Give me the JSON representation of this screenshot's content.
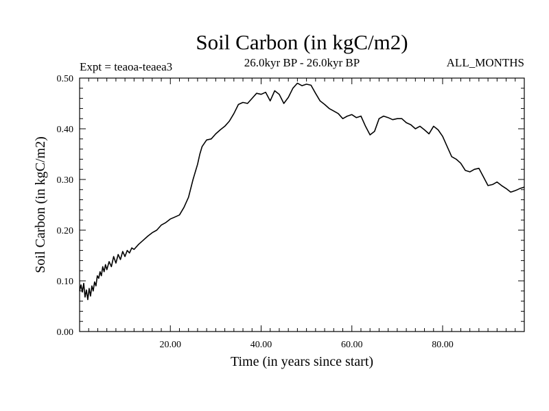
{
  "chart_data": {
    "type": "line",
    "title": "Soil Carbon (in kgC/m2)",
    "subtitle": "26.0kyr BP - 26.0kyr BP",
    "expt_label": "Expt = teaoa-teaea3",
    "months_label": "ALL_MONTHS",
    "xlabel": "Time (in years since start)",
    "ylabel": "Soil Carbon (in kgC/m2)",
    "xlim": [
      0,
      98
    ],
    "ylim": [
      0,
      0.5
    ],
    "x_ticks": [
      20,
      40,
      60,
      80
    ],
    "x_tick_labels": [
      "20.00",
      "40.00",
      "60.00",
      "80.00"
    ],
    "y_ticks": [
      0,
      0.1,
      0.2,
      0.3,
      0.4,
      0.5
    ],
    "y_tick_labels": [
      "0.00",
      "0.10",
      "0.20",
      "0.30",
      "0.40",
      "0.50"
    ],
    "grid": false,
    "series": [
      {
        "name": "soil_carbon",
        "color": "#000000",
        "x": [
          0,
          0.3,
          0.6,
          0.9,
          1.2,
          1.5,
          1.8,
          2.1,
          2.4,
          2.7,
          3.0,
          3.3,
          3.6,
          3.9,
          4.2,
          4.5,
          4.8,
          5.1,
          5.4,
          5.7,
          6.0,
          6.5,
          7.0,
          7.5,
          8.0,
          8.5,
          9.0,
          9.5,
          10.0,
          10.5,
          11.0,
          11.5,
          12.0,
          13.0,
          14.0,
          15.0,
          16.0,
          17.0,
          18.0,
          19.0,
          20.0,
          21.0,
          22.0,
          23.0,
          24.0,
          25.0,
          25.5,
          26.0,
          26.5,
          27.0,
          28.0,
          29.0,
          30.0,
          31.0,
          32.0,
          33.0,
          34.0,
          35.0,
          36.0,
          37.0,
          38.0,
          39.0,
          40.0,
          41.0,
          42.0,
          43.0,
          44.0,
          45.0,
          46.0,
          47.0,
          48.0,
          49.0,
          50.0,
          51.0,
          52.0,
          53.0,
          54.0,
          55.0,
          56.0,
          57.0,
          58.0,
          59.0,
          60.0,
          61.0,
          62.0,
          63.0,
          64.0,
          65.0,
          66.0,
          67.0,
          68.0,
          69.0,
          70.0,
          71.0,
          72.0,
          73.0,
          74.0,
          75.0,
          76.0,
          77.0,
          78.0,
          79.0,
          80.0,
          81.0,
          82.0,
          83.0,
          84.0,
          85.0,
          86.0,
          87.0,
          88.0,
          89.0,
          90.0,
          91.0,
          92.0,
          93.0,
          94.0,
          95.0,
          96.0,
          97.0,
          98.0
        ],
        "values": [
          0.08,
          0.092,
          0.078,
          0.095,
          0.068,
          0.082,
          0.063,
          0.085,
          0.07,
          0.09,
          0.08,
          0.098,
          0.09,
          0.11,
          0.105,
          0.118,
          0.11,
          0.128,
          0.118,
          0.132,
          0.122,
          0.138,
          0.128,
          0.148,
          0.135,
          0.152,
          0.142,
          0.158,
          0.148,
          0.16,
          0.155,
          0.165,
          0.162,
          0.172,
          0.18,
          0.188,
          0.195,
          0.2,
          0.21,
          0.215,
          0.222,
          0.226,
          0.23,
          0.245,
          0.265,
          0.3,
          0.315,
          0.33,
          0.35,
          0.365,
          0.378,
          0.38,
          0.39,
          0.398,
          0.405,
          0.415,
          0.43,
          0.448,
          0.452,
          0.45,
          0.46,
          0.47,
          0.468,
          0.472,
          0.455,
          0.475,
          0.468,
          0.45,
          0.462,
          0.48,
          0.49,
          0.485,
          0.488,
          0.486,
          0.47,
          0.455,
          0.448,
          0.44,
          0.435,
          0.43,
          0.42,
          0.425,
          0.428,
          0.422,
          0.425,
          0.405,
          0.388,
          0.395,
          0.42,
          0.425,
          0.422,
          0.418,
          0.42,
          0.42,
          0.412,
          0.408,
          0.4,
          0.405,
          0.398,
          0.39,
          0.405,
          0.398,
          0.385,
          0.365,
          0.345,
          0.34,
          0.332,
          0.318,
          0.315,
          0.32,
          0.322,
          0.305,
          0.288,
          0.29,
          0.295,
          0.288,
          0.282,
          0.275,
          0.278,
          0.282,
          0.285
        ]
      }
    ]
  }
}
